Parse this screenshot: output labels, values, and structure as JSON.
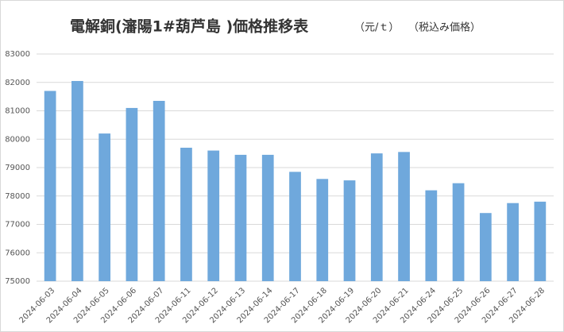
{
  "chart_data": {
    "type": "bar",
    "title": "電解銅(瀋陽1#葫芦島 )価格推移表",
    "subtitle": "（元/ｔ）",
    "annotations": [
      "（税込み価格）"
    ],
    "categories": [
      "2024-06-03",
      "2024-06-04",
      "2024-06-05",
      "2024-06-06",
      "2024-06-07",
      "2024-06-11",
      "2024-06-12",
      "2024-06-13",
      "2024-06-14",
      "2024-06-17",
      "2024-06-18",
      "2024-06-19",
      "2024-06-20",
      "2024-06-21",
      "2024-06-24",
      "2024-06-25",
      "2024-06-26",
      "2024-06-27",
      "2024-06-28"
    ],
    "values": [
      81700,
      82050,
      80200,
      81100,
      81350,
      79700,
      79600,
      79450,
      79450,
      78850,
      78600,
      78550,
      79500,
      79550,
      78200,
      78450,
      77400,
      77750,
      77800
    ],
    "color": "#6fa8dc",
    "ylim": [
      75000,
      83000
    ],
    "yticks": [
      75000,
      76000,
      77000,
      78000,
      79000,
      80000,
      81000,
      82000,
      83000
    ],
    "grid": true
  }
}
